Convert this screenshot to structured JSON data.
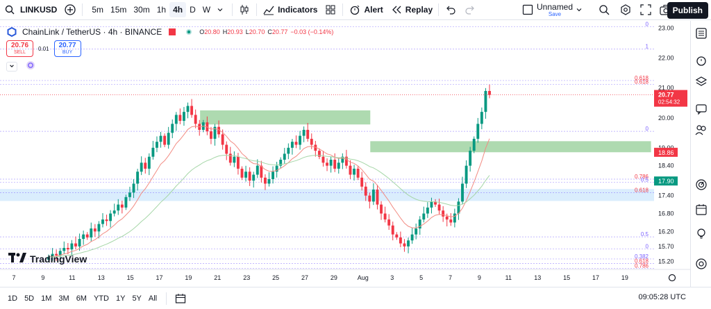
{
  "toolbar": {
    "symbol": "LINKUSD",
    "timeframes": [
      "5m",
      "15m",
      "30m",
      "1h",
      "4h",
      "D",
      "W"
    ],
    "active_timeframe": "4h",
    "indicators_label": "Indicators",
    "alert_label": "Alert",
    "replay_label": "Replay",
    "layout_name": "Unnamed",
    "layout_status": "Save",
    "publish_label": "Publish"
  },
  "legend": {
    "title": "ChainLink / TetherUS · 4h · BINANCE",
    "o": "20.80",
    "h": "20.93",
    "l": "20.70",
    "c": "20.77",
    "change": "−0.03 (−0.14%)",
    "o_key": "O",
    "h_key": "H",
    "l_key": "L",
    "c_key": "C"
  },
  "trade": {
    "sell_price": "20.76",
    "sell_label": "SELL",
    "spread": "0.01",
    "buy_price": "20.77",
    "buy_label": "BUY"
  },
  "branding": {
    "logo_text": "TradingView"
  },
  "bottombar": {
    "ranges": [
      "1D",
      "5D",
      "1M",
      "3M",
      "6M",
      "YTD",
      "1Y",
      "5Y",
      "All"
    ],
    "clock": "09:05:28 UTC"
  },
  "colors": {
    "up": "#089981",
    "down": "#f23645",
    "zone_green": "#a5d6a7",
    "zone_blue": "#bbdefb",
    "fib": "#7b61ff",
    "ema_fast": "#f28b82",
    "ema_slow": "#a5d6a7"
  },
  "chart_data": {
    "type": "candlestick",
    "title": "ChainLink / TetherUS · 4h · BINANCE",
    "x_ticks": [
      "7",
      "9",
      "11",
      "13",
      "15",
      "17",
      "19",
      "21",
      "23",
      "25",
      "27",
      "29",
      "Aug",
      "3",
      "5",
      "7",
      "9",
      "11",
      "13",
      "15",
      "17",
      "19"
    ],
    "y_ticks": [
      "23.00",
      "22.00",
      "21.00",
      "20.00",
      "19.00",
      "18.40",
      "17.40",
      "16.80",
      "16.20",
      "15.70",
      "15.20"
    ],
    "y_range": [
      15.0,
      23.2
    ],
    "price_label": {
      "value": "20.77",
      "countdown": "02:54:32"
    },
    "level_labels": [
      {
        "value": "18.86"
      },
      {
        "value": "17.90"
      }
    ],
    "fib_labels": [
      {
        "text": "0",
        "price": 23.05
      },
      {
        "text": "1",
        "price": 22.3
      },
      {
        "text": "0.618",
        "price": 21.25
      },
      {
        "text": "0.618",
        "price": 21.12
      },
      {
        "text": "0",
        "price": 19.55
      },
      {
        "text": "0.786",
        "price": 17.95
      },
      {
        "text": "0.5",
        "price": 17.85
      },
      {
        "text": "0.618",
        "price": 17.5
      },
      {
        "text": "0.5",
        "price": 16.02
      },
      {
        "text": "0",
        "price": 15.62
      },
      {
        "text": "0.382",
        "price": 15.28
      },
      {
        "text": "0.618",
        "price": 15.13
      },
      {
        "text": "0.786",
        "price": 14.97
      }
    ],
    "zones": [
      {
        "name": "supply-zone-upper",
        "from_day": 19.8,
        "to_day": 31.5,
        "low": 19.78,
        "high": 20.25,
        "color": "#a5d6a7"
      },
      {
        "name": "demand-zone-green",
        "from_day": 31.5,
        "to_day": 50.8,
        "low": 18.85,
        "high": 19.22,
        "color": "#a5d6a7"
      },
      {
        "name": "support-zone-blue",
        "from_day": 0,
        "to_day": 55.5,
        "low": 17.22,
        "high": 17.62,
        "color": "#bbdefb"
      }
    ],
    "close_series": [
      15.35,
      15.45,
      15.4,
      15.55,
      15.65,
      15.6,
      15.8,
      15.7,
      15.95,
      16.1,
      16.0,
      16.3,
      16.2,
      16.45,
      16.6,
      16.55,
      16.8,
      16.9,
      17.1,
      17.0,
      17.35,
      17.5,
      17.8,
      18.2,
      18.5,
      18.3,
      18.7,
      19.0,
      19.2,
      19.4,
      19.1,
      19.5,
      19.8,
      20.1,
      19.9,
      20.2,
      20.4,
      20.1,
      19.8,
      19.6,
      19.85,
      19.55,
      19.3,
      19.7,
      19.45,
      19.1,
      18.8,
      18.5,
      18.7,
      18.3,
      18.0,
      18.2,
      17.9,
      18.1,
      18.4,
      18.0,
      17.8,
      17.95,
      18.2,
      18.4,
      18.6,
      18.8,
      19.0,
      19.2,
      19.1,
      19.4,
      19.6,
      19.3,
      19.1,
      18.9,
      18.7,
      18.5,
      18.4,
      18.6,
      18.3,
      18.5,
      18.7,
      18.4,
      18.1,
      18.3,
      18.0,
      17.7,
      17.4,
      17.2,
      17.6,
      17.1,
      16.8,
      16.6,
      16.4,
      16.1,
      16.0,
      15.8,
      15.7,
      15.9,
      16.1,
      16.3,
      16.6,
      16.8,
      17.0,
      17.2,
      17.1,
      16.9,
      16.7,
      16.6,
      16.5,
      16.8,
      17.2,
      17.8,
      18.4,
      18.9,
      19.3,
      19.8,
      20.2,
      20.9,
      20.77
    ],
    "ema_fast_label": "EMA fast",
    "ema_slow_label": "EMA slow"
  }
}
